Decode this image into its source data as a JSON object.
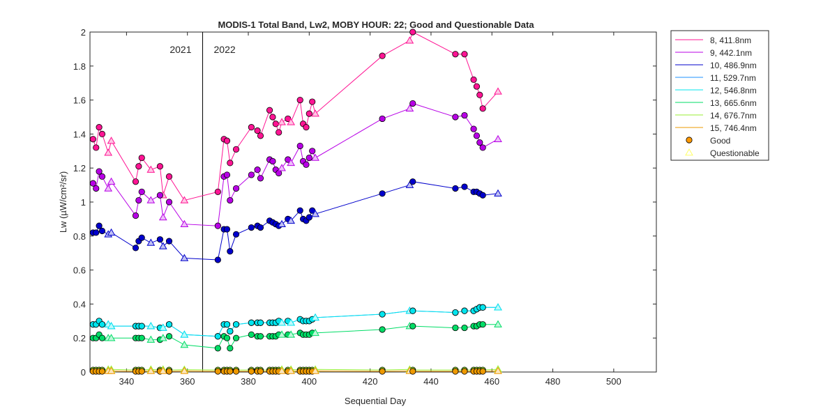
{
  "chart_data": {
    "type": "line",
    "title": "MODIS-1 Total Band,  Lw2, MOBY HOUR: 22;  Good and Questionable Data",
    "xlabel": "Sequential Day",
    "ylabel": "Lw (µW/cm²/sr)",
    "xlim": [
      328,
      514
    ],
    "ylim": [
      0,
      2
    ],
    "xticks": [
      340,
      360,
      380,
      400,
      420,
      440,
      460,
      480,
      500
    ],
    "yticks": [
      0,
      0.2,
      0.4,
      0.6,
      0.8,
      1,
      1.2,
      1.4,
      1.6,
      1.8,
      2
    ],
    "grid": false,
    "legend_position": "outside-top-right",
    "year_divider": {
      "x": 365,
      "left_label": "2021",
      "right_label": "2022"
    },
    "x": [
      329,
      330,
      331,
      332,
      334,
      335,
      343,
      344,
      345,
      348,
      351,
      352,
      354,
      359,
      370,
      372,
      373,
      374,
      376,
      381,
      383,
      384,
      387,
      388,
      389,
      390,
      391,
      393,
      394,
      397,
      398,
      399,
      400,
      401,
      402,
      424,
      433,
      434,
      448,
      451,
      454,
      455,
      456,
      457,
      462
    ],
    "quality": [
      "G",
      "G",
      "G",
      "G",
      "Q",
      "Q",
      "G",
      "G",
      "G",
      "Q",
      "G",
      "Q",
      "G",
      "Q",
      "G",
      "G",
      "G",
      "G",
      "G",
      "G",
      "G",
      "G",
      "G",
      "G",
      "G",
      "G",
      "Q",
      "G",
      "Q",
      "G",
      "G",
      "G",
      "G",
      "G",
      "Q",
      "G",
      "Q",
      "G",
      "G",
      "G",
      "G",
      "G",
      "G",
      "G",
      "Q"
    ],
    "series": [
      {
        "name": "8, 411.8nm",
        "color": "#ff1493",
        "values": [
          1.37,
          1.32,
          1.44,
          1.4,
          1.29,
          1.36,
          1.12,
          1.21,
          1.26,
          1.19,
          1.21,
          1.04,
          1.15,
          1.01,
          1.06,
          1.37,
          1.36,
          1.23,
          1.31,
          1.44,
          1.42,
          1.39,
          1.54,
          1.5,
          1.46,
          1.41,
          1.47,
          1.49,
          1.47,
          1.6,
          1.46,
          1.44,
          1.52,
          1.59,
          1.52,
          1.86,
          1.95,
          2.0,
          1.87,
          1.87,
          1.72,
          1.68,
          1.63,
          1.55,
          1.65
        ]
      },
      {
        "name": "9, 442.1nm",
        "color": "#b800e6",
        "values": [
          1.11,
          1.08,
          1.18,
          1.15,
          1.08,
          1.12,
          0.92,
          1.01,
          1.06,
          1.01,
          1.04,
          0.91,
          1.0,
          0.87,
          0.86,
          1.15,
          1.16,
          1.01,
          1.08,
          1.16,
          1.19,
          1.14,
          1.25,
          1.24,
          1.19,
          1.17,
          1.2,
          1.25,
          1.23,
          1.33,
          1.24,
          1.22,
          1.26,
          1.3,
          1.26,
          1.49,
          1.55,
          1.58,
          1.5,
          1.51,
          1.43,
          1.39,
          1.35,
          1.32,
          1.37
        ]
      },
      {
        "name": "10, 486.9nm",
        "color": "#0000cc",
        "values": [
          0.82,
          0.82,
          0.86,
          0.83,
          0.81,
          0.82,
          0.73,
          0.77,
          0.79,
          0.76,
          0.78,
          0.74,
          0.77,
          0.67,
          0.66,
          0.84,
          0.84,
          0.71,
          0.81,
          0.85,
          0.86,
          0.85,
          0.89,
          0.88,
          0.87,
          0.86,
          0.87,
          0.9,
          0.89,
          0.95,
          0.9,
          0.89,
          0.91,
          0.95,
          0.93,
          1.05,
          1.1,
          1.12,
          1.08,
          1.09,
          1.06,
          1.06,
          1.05,
          1.04,
          1.05
        ]
      },
      {
        "name": "11, 529.7nm",
        "color": "#1e90ff",
        "values": [
          0.28,
          0.28,
          0.3,
          0.28,
          0.28,
          0.27,
          0.27,
          0.27,
          0.27,
          0.27,
          0.26,
          0.26,
          0.28,
          0.22,
          0.21,
          0.28,
          0.28,
          0.24,
          0.28,
          0.29,
          0.29,
          0.29,
          0.29,
          0.29,
          0.29,
          0.3,
          0.29,
          0.3,
          0.29,
          0.31,
          0.3,
          0.3,
          0.3,
          0.31,
          0.32,
          0.34,
          0.36,
          0.36,
          0.35,
          0.36,
          0.36,
          0.37,
          0.38,
          0.38,
          0.38
        ]
      },
      {
        "name": "12, 546.8nm",
        "color": "#00e5ee",
        "values": [
          0.28,
          0.28,
          0.3,
          0.28,
          0.28,
          0.27,
          0.27,
          0.27,
          0.27,
          0.27,
          0.26,
          0.26,
          0.28,
          0.22,
          0.21,
          0.28,
          0.28,
          0.24,
          0.28,
          0.29,
          0.29,
          0.29,
          0.29,
          0.29,
          0.29,
          0.3,
          0.29,
          0.3,
          0.29,
          0.31,
          0.3,
          0.3,
          0.3,
          0.31,
          0.32,
          0.34,
          0.36,
          0.36,
          0.35,
          0.36,
          0.36,
          0.37,
          0.38,
          0.38,
          0.38
        ]
      },
      {
        "name": "13, 665.6nm",
        "color": "#00dd66",
        "values": [
          0.2,
          0.2,
          0.22,
          0.2,
          0.2,
          0.2,
          0.2,
          0.2,
          0.2,
          0.19,
          0.19,
          0.2,
          0.21,
          0.16,
          0.14,
          0.21,
          0.2,
          0.14,
          0.2,
          0.22,
          0.21,
          0.21,
          0.21,
          0.21,
          0.21,
          0.22,
          0.22,
          0.22,
          0.22,
          0.23,
          0.22,
          0.22,
          0.22,
          0.23,
          0.23,
          0.25,
          0.27,
          0.27,
          0.26,
          0.26,
          0.27,
          0.27,
          0.28,
          0.28,
          0.28
        ]
      },
      {
        "name": "14, 676.7nm",
        "color": "#99ee33",
        "values": [
          0.012,
          0.012,
          0.012,
          0.012,
          0.015,
          0.015,
          0.012,
          0.012,
          0.012,
          0.015,
          0.012,
          0.015,
          0.012,
          0.014,
          0.012,
          0.012,
          0.012,
          0.012,
          0.012,
          0.012,
          0.012,
          0.012,
          0.012,
          0.012,
          0.012,
          0.012,
          0.015,
          0.012,
          0.015,
          0.012,
          0.012,
          0.012,
          0.012,
          0.012,
          0.015,
          0.012,
          0.015,
          0.012,
          0.012,
          0.012,
          0.012,
          0.012,
          0.012,
          0.012,
          0.016
        ]
      },
      {
        "name": "15, 746.4nm",
        "color": "#ee9900",
        "values": [
          0.004,
          0.004,
          0.004,
          0.004,
          0.006,
          0.006,
          0.004,
          0.004,
          0.004,
          0.006,
          0.004,
          0.006,
          0.004,
          0.006,
          0.004,
          0.004,
          0.004,
          0.004,
          0.004,
          0.004,
          0.004,
          0.004,
          0.004,
          0.004,
          0.004,
          0.004,
          0.006,
          0.004,
          0.006,
          0.004,
          0.004,
          0.004,
          0.004,
          0.004,
          0.006,
          0.004,
          0.006,
          0.004,
          0.004,
          0.004,
          0.004,
          0.004,
          0.004,
          0.004,
          0.006
        ]
      }
    ],
    "markers": [
      {
        "name": "Good",
        "symbol": "circle",
        "color": "#ff9900"
      },
      {
        "name": "Questionable",
        "symbol": "triangle",
        "color": "#ffff66"
      }
    ]
  }
}
